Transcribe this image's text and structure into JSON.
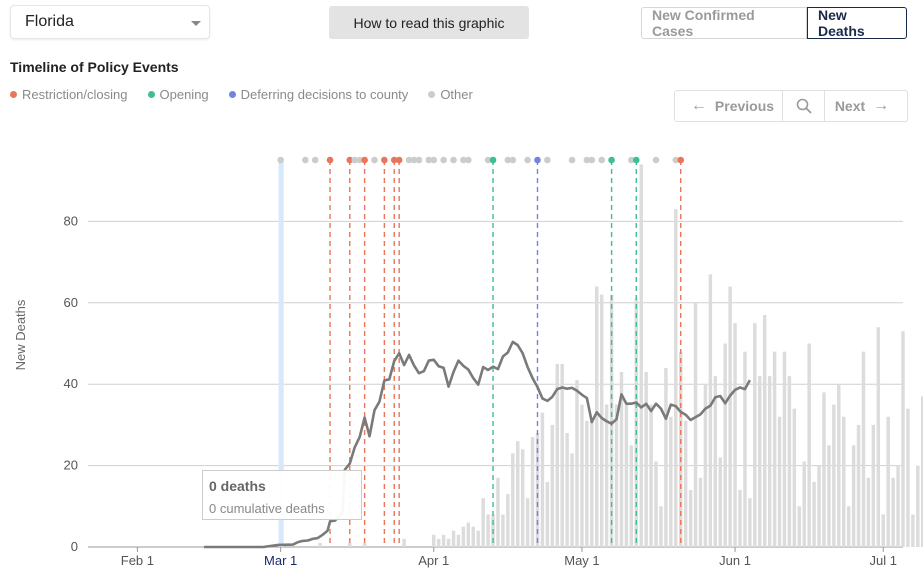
{
  "state_select": {
    "value": "Florida"
  },
  "howto_label": "How to read this graphic",
  "metric_toggle": {
    "options": [
      "New Confirmed Cases",
      "New Deaths"
    ],
    "active": "New Deaths"
  },
  "timeline": {
    "title": "Timeline of Policy Events",
    "legend": [
      {
        "label": "Restriction/closing",
        "color": "#e8765a"
      },
      {
        "label": "Opening",
        "color": "#3dbd98"
      },
      {
        "label": "Deferring decisions to county",
        "color": "#7383e0"
      },
      {
        "label": "Other",
        "color": "#cccccc"
      }
    ]
  },
  "pager": {
    "prev_label": "Previous",
    "next_label": "Next"
  },
  "tooltip": {
    "title": "0 deaths",
    "subtitle": "0 cumulative deaths"
  },
  "chart_data": {
    "type": "bar",
    "ylabel": "New Deaths",
    "ylim": [
      0,
      100
    ],
    "yticks": [
      0,
      20,
      40,
      60,
      80
    ],
    "x_start": "Jan 22",
    "x_end": "Jul 5",
    "xticks": [
      {
        "label": "Feb 1",
        "day": 10
      },
      {
        "label": "Mar 1",
        "day": 39,
        "active": true
      },
      {
        "label": "Apr 1",
        "day": 70
      },
      {
        "label": "May 1",
        "day": 100
      },
      {
        "label": "Jun 1",
        "day": 131
      },
      {
        "label": "Jul 1",
        "day": 161
      }
    ],
    "selected_day": 39,
    "bar_start_day": 47,
    "bars": [
      1,
      0,
      0,
      0,
      0,
      0,
      1,
      0,
      0,
      1,
      0,
      0,
      0,
      0,
      0,
      0,
      0,
      2,
      0,
      0,
      0,
      0,
      0,
      3,
      2,
      3,
      2,
      4,
      3,
      5,
      6,
      5,
      4,
      12,
      8,
      8,
      17,
      8,
      13,
      23,
      26,
      24,
      12,
      27,
      28,
      33,
      16,
      30,
      45,
      45,
      28,
      23,
      41,
      35,
      31,
      31,
      64,
      62,
      35,
      62,
      35,
      43,
      35,
      25,
      61,
      94,
      43,
      35,
      21,
      10,
      44,
      32,
      83,
      48,
      31,
      14,
      60,
      17,
      40,
      67,
      42,
      22,
      50,
      64,
      55,
      14,
      48,
      12,
      55,
      42,
      57,
      42,
      48,
      32,
      48,
      42,
      34,
      10,
      21,
      50,
      16,
      20,
      38,
      25,
      35,
      40,
      32,
      10,
      25,
      30,
      48,
      17,
      30,
      54,
      8,
      32,
      17,
      20,
      53,
      34,
      8,
      20,
      37,
      20,
      26,
      70,
      12,
      47,
      35,
      50,
      20,
      46,
      33,
      54,
      10,
      35,
      38,
      30,
      38,
      15,
      21,
      12,
      60,
      27,
      7,
      30,
      48,
      9,
      23,
      20,
      45,
      32,
      44,
      43,
      12,
      34,
      30,
      49,
      10,
      26,
      30,
      65,
      40,
      32,
      58,
      24,
      20,
      45,
      32,
      50,
      40,
      67
    ],
    "avg_points": [
      [
        47,
        0
      ],
      [
        71,
        0
      ],
      [
        77,
        0.5
      ],
      [
        83,
        0.6
      ],
      [
        85,
        1.2
      ],
      [
        87,
        1.5
      ],
      [
        89,
        1.6
      ],
      [
        91,
        2
      ],
      [
        93,
        2.2
      ],
      [
        95,
        3
      ],
      [
        97,
        4
      ],
      [
        98,
        6.3
      ],
      [
        100,
        6.5
      ],
      [
        101,
        7.1
      ],
      [
        103,
        8.4
      ],
      [
        104,
        19
      ],
      [
        106,
        20.5
      ],
      [
        108,
        24.5
      ],
      [
        110,
        27
      ],
      [
        112,
        31.8
      ],
      [
        114,
        27.2
      ],
      [
        116,
        33.6
      ],
      [
        118,
        35.7
      ],
      [
        120,
        40.9
      ],
      [
        122,
        41.2
      ],
      [
        124,
        45.7
      ],
      [
        126,
        47.6
      ],
      [
        128,
        44.7
      ],
      [
        130,
        47.2
      ],
      [
        132,
        44.6
      ],
      [
        134,
        42.7
      ],
      [
        136,
        43.2
      ],
      [
        138,
        45.8
      ],
      [
        140,
        46
      ],
      [
        142,
        44.4
      ],
      [
        144,
        44
      ],
      [
        146,
        39.4
      ],
      [
        148,
        43
      ],
      [
        150,
        45.8
      ],
      [
        152,
        44.5
      ],
      [
        154,
        43.6
      ],
      [
        156,
        41.5
      ],
      [
        158,
        39.9
      ],
      [
        160,
        44.2
      ],
      [
        162,
        43.5
      ],
      [
        164,
        44.3
      ],
      [
        166,
        43.7
      ],
      [
        168,
        46.8
      ],
      [
        170,
        47.8
      ],
      [
        172,
        50.4
      ],
      [
        174,
        49.6
      ],
      [
        176,
        47.6
      ],
      [
        178,
        44.2
      ],
      [
        180,
        41.5
      ],
      [
        182,
        39.3
      ],
      [
        184,
        36.5
      ],
      [
        186,
        35.9
      ],
      [
        188,
        36.9
      ],
      [
        190,
        38.8
      ],
      [
        192,
        39.2
      ],
      [
        194,
        38.9
      ],
      [
        196,
        39.1
      ],
      [
        198,
        38.4
      ],
      [
        200,
        37.4
      ],
      [
        202,
        36.6
      ],
      [
        204,
        30.7
      ],
      [
        206,
        33.1
      ],
      [
        208,
        31.7
      ],
      [
        210,
        30.9
      ],
      [
        212,
        30.3
      ],
      [
        214,
        31.4
      ],
      [
        216,
        37.5
      ],
      [
        218,
        35.2
      ],
      [
        220,
        35.2
      ],
      [
        222,
        35.5
      ],
      [
        224,
        34.3
      ],
      [
        226,
        35.2
      ],
      [
        228,
        33.4
      ],
      [
        230,
        35.2
      ],
      [
        232,
        34
      ],
      [
        234,
        31.5
      ],
      [
        236,
        35
      ],
      [
        238,
        34.6
      ],
      [
        240,
        33.2
      ],
      [
        242,
        32.5
      ],
      [
        244,
        31.2
      ],
      [
        246,
        31.9
      ],
      [
        248,
        32.6
      ],
      [
        250,
        34
      ],
      [
        252,
        34.7
      ],
      [
        254,
        36.8
      ],
      [
        256,
        37.1
      ],
      [
        258,
        35.3
      ],
      [
        260,
        37.2
      ],
      [
        262,
        38.6
      ],
      [
        264,
        39.2
      ],
      [
        266,
        38.8
      ],
      [
        268,
        41
      ]
    ],
    "events": [
      {
        "day": 39,
        "type": "Other"
      },
      {
        "day": 44,
        "type": "Other"
      },
      {
        "day": 46,
        "type": "Other"
      },
      {
        "day": 49,
        "type": "Restriction/closing",
        "line": true
      },
      {
        "day": 53,
        "type": "Restriction/closing",
        "line": true
      },
      {
        "day": 54,
        "type": "Other"
      },
      {
        "day": 55,
        "type": "Other"
      },
      {
        "day": 56,
        "type": "Restriction/closing",
        "line": true
      },
      {
        "day": 58,
        "type": "Other"
      },
      {
        "day": 60,
        "type": "Restriction/closing",
        "line": true
      },
      {
        "day": 62,
        "type": "Restriction/closing",
        "line": true
      },
      {
        "day": 63,
        "type": "Restriction/closing",
        "line": true
      },
      {
        "day": 65,
        "type": "Other"
      },
      {
        "day": 66,
        "type": "Other"
      },
      {
        "day": 67,
        "type": "Other"
      },
      {
        "day": 69,
        "type": "Other"
      },
      {
        "day": 70,
        "type": "Other"
      },
      {
        "day": 72,
        "type": "Other"
      },
      {
        "day": 74,
        "type": "Other"
      },
      {
        "day": 76,
        "type": "Other"
      },
      {
        "day": 77,
        "type": "Other"
      },
      {
        "day": 81,
        "type": "Other"
      },
      {
        "day": 82,
        "type": "Opening",
        "line": true
      },
      {
        "day": 85,
        "type": "Other"
      },
      {
        "day": 86,
        "type": "Other"
      },
      {
        "day": 89,
        "type": "Other"
      },
      {
        "day": 91,
        "type": "Deferring decisions to county",
        "line": true
      },
      {
        "day": 93,
        "type": "Other"
      },
      {
        "day": 98,
        "type": "Other"
      },
      {
        "day": 101,
        "type": "Other"
      },
      {
        "day": 102,
        "type": "Other"
      },
      {
        "day": 104,
        "type": "Other"
      },
      {
        "day": 106,
        "type": "Opening",
        "line": true
      },
      {
        "day": 110,
        "type": "Other"
      },
      {
        "day": 111,
        "type": "Opening",
        "line": true
      },
      {
        "day": 115,
        "type": "Other"
      },
      {
        "day": 119,
        "type": "Other"
      },
      {
        "day": 120,
        "type": "Restriction/closing",
        "line": true
      }
    ]
  }
}
